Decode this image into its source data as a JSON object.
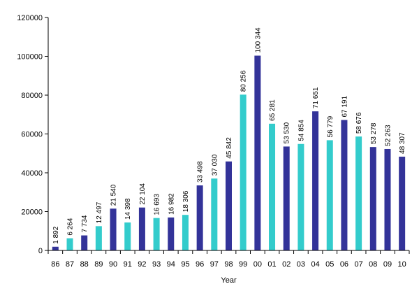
{
  "chart_data": {
    "type": "bar",
    "title": "",
    "xlabel": "Year",
    "ylabel": "",
    "ylim": [
      0,
      120000
    ],
    "yticks": [
      0,
      20000,
      40000,
      60000,
      80000,
      100000,
      120000
    ],
    "ytick_labels": [
      "0",
      "20000",
      "40000",
      "60000",
      "80000",
      "100000",
      "120000"
    ],
    "grid": false,
    "legend": "none",
    "colors": {
      "dark": "#333399",
      "light": "#33CCCC"
    },
    "categories": [
      "86",
      "87",
      "88",
      "89",
      "90",
      "91",
      "92",
      "93",
      "94",
      "95",
      "96",
      "97",
      "98",
      "99",
      "00",
      "01",
      "02",
      "03",
      "04",
      "05",
      "06",
      "07",
      "08",
      "09",
      "10"
    ],
    "values": [
      1892,
      6264,
      7734,
      12497,
      21540,
      14398,
      22104,
      16693,
      16982,
      18306,
      33498,
      37030,
      45842,
      80256,
      100344,
      65281,
      53530,
      54854,
      71651,
      56779,
      67191,
      58676,
      53278,
      52263,
      48307
    ],
    "value_labels": [
      "1 892",
      "6 264",
      "7 734",
      "12 497",
      "21 540",
      "14 398",
      "22 104",
      "16 693",
      "16 982",
      "18 306",
      "33 498",
      "37 030",
      "45 842",
      "80 256",
      "100 344",
      "65 281",
      "53 530",
      "54 854",
      "71 651",
      "56 779",
      "67 191",
      "58 676",
      "53 278",
      "52 263",
      "48 307"
    ],
    "bar_colors": [
      "dark",
      "light",
      "dark",
      "light",
      "dark",
      "light",
      "dark",
      "light",
      "dark",
      "light",
      "dark",
      "light",
      "dark",
      "light",
      "dark",
      "light",
      "dark",
      "light",
      "dark",
      "light",
      "dark",
      "light",
      "dark",
      "dark",
      "dark"
    ]
  }
}
